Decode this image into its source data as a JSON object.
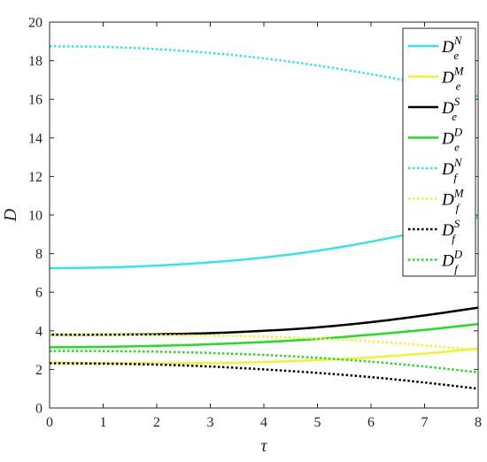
{
  "chart_data": {
    "type": "line",
    "title": "",
    "xlabel": "τ",
    "ylabel": "D",
    "xlim": [
      0,
      8
    ],
    "ylim": [
      0,
      20
    ],
    "xticks": [
      0,
      1,
      2,
      3,
      4,
      5,
      6,
      7,
      8
    ],
    "yticks": [
      0,
      2,
      4,
      6,
      8,
      10,
      12,
      14,
      16,
      18,
      20
    ],
    "grid": false,
    "legend_position": "top-right",
    "x": [
      0,
      1,
      2,
      3,
      4,
      5,
      6,
      7,
      8
    ],
    "series": [
      {
        "base": "D",
        "sub": "e",
        "sup": "N",
        "color": "#33e6e6",
        "style": "solid",
        "values": [
          7.25,
          7.28,
          7.38,
          7.55,
          7.8,
          8.15,
          8.62,
          9.2,
          9.9
        ]
      },
      {
        "base": "D",
        "sub": "e",
        "sup": "M",
        "color": "#f2f233",
        "style": "solid",
        "values": [
          2.35,
          2.33,
          2.32,
          2.33,
          2.38,
          2.48,
          2.62,
          2.82,
          3.08
        ]
      },
      {
        "base": "D",
        "sub": "e",
        "sup": "S",
        "color": "#000000",
        "style": "solid",
        "values": [
          3.8,
          3.8,
          3.82,
          3.88,
          4.0,
          4.18,
          4.45,
          4.8,
          5.2
        ]
      },
      {
        "base": "D",
        "sub": "e",
        "sup": "D",
        "color": "#22dd22",
        "style": "solid",
        "values": [
          3.15,
          3.17,
          3.22,
          3.3,
          3.42,
          3.58,
          3.8,
          4.05,
          4.35
        ]
      },
      {
        "base": "D",
        "sub": "f",
        "sup": "N",
        "color": "#33e6e6",
        "style": "dotted",
        "values": [
          18.75,
          18.72,
          18.6,
          18.4,
          18.12,
          17.75,
          17.3,
          16.78,
          16.15
        ]
      },
      {
        "base": "D",
        "sub": "f",
        "sup": "M",
        "color": "#f2f233",
        "style": "dotted",
        "values": [
          3.8,
          3.8,
          3.78,
          3.75,
          3.7,
          3.6,
          3.45,
          3.25,
          3.0
        ]
      },
      {
        "base": "D",
        "sub": "f",
        "sup": "S",
        "color": "#000000",
        "style": "dotted",
        "values": [
          2.32,
          2.3,
          2.25,
          2.15,
          2.0,
          1.82,
          1.6,
          1.32,
          1.0
        ]
      },
      {
        "base": "D",
        "sub": "f",
        "sup": "D",
        "color": "#22dd22",
        "style": "dotted",
        "values": [
          2.95,
          2.95,
          2.92,
          2.85,
          2.75,
          2.6,
          2.4,
          2.15,
          1.85
        ]
      }
    ]
  }
}
